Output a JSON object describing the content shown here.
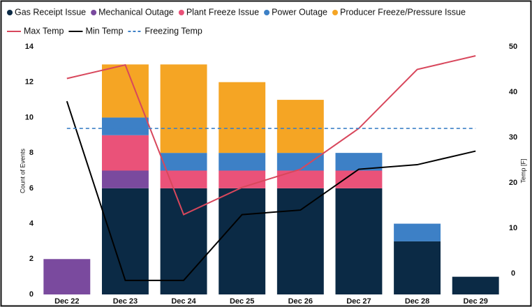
{
  "chart_data": {
    "type": "bar",
    "stacked": true,
    "categories": [
      "Dec 22",
      "Dec 23",
      "Dec 24",
      "Dec 25",
      "Dec 26",
      "Dec 27",
      "Dec 28",
      "Dec 29"
    ],
    "series": [
      {
        "name": "Gas Receipt Issue",
        "color": "#0b2a45",
        "values": [
          0,
          6,
          6,
          6,
          6,
          6,
          3,
          1
        ]
      },
      {
        "name": "Mechanical Outage",
        "color": "#7a4a9e",
        "values": [
          2,
          1,
          0,
          0,
          0,
          0,
          0,
          0
        ]
      },
      {
        "name": "Plant Freeze Issue",
        "color": "#ea5279",
        "values": [
          0,
          2,
          1,
          1,
          1,
          1,
          0,
          0
        ]
      },
      {
        "name": "Power Outage",
        "color": "#3d80c6",
        "values": [
          0,
          1,
          1,
          1,
          1,
          1,
          1,
          0
        ]
      },
      {
        "name": "Producer Freeze/Pressure Issue",
        "color": "#f5a524",
        "values": [
          0,
          3,
          5,
          4,
          3,
          0,
          0,
          0
        ]
      },
      {
        "name": "Max Temp",
        "type": "line",
        "axis": "y2",
        "color": "#d8475c",
        "values": [
          43,
          46,
          13,
          19,
          23,
          32,
          45,
          48
        ]
      },
      {
        "name": "Min Temp",
        "type": "line",
        "axis": "y2",
        "color": "#000000",
        "values": [
          38,
          -1.5,
          -1.5,
          13,
          14,
          23,
          24,
          27
        ]
      },
      {
        "name": "Freezing Temp",
        "type": "line",
        "axis": "y2",
        "dashed": true,
        "color": "#3d80c6",
        "values": [
          32,
          32,
          32,
          32,
          32,
          32,
          32,
          32
        ]
      }
    ],
    "ylabel": "Count of Events",
    "y2label": "Temp [F]",
    "ylim": [
      0,
      14
    ],
    "yticks": [
      0,
      2,
      4,
      6,
      8,
      10,
      12,
      14
    ],
    "y2lim": [
      -4.6,
      50
    ],
    "y2ticks": [
      0,
      10,
      20,
      30,
      40,
      50
    ]
  }
}
